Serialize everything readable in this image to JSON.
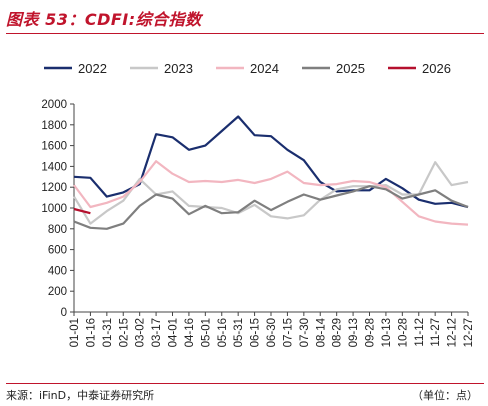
{
  "header": {
    "title": "图表 53：CDFI:综合指数"
  },
  "footer": {
    "source": "来源：iFinD，中泰证券研究所",
    "unit": "（单位：点）"
  },
  "chart_data": {
    "type": "line",
    "title": "图表 53：CDFI:综合指数",
    "xlabel": "",
    "ylabel": "",
    "ylim": [
      0,
      2000
    ],
    "yticks": [
      0,
      200,
      400,
      600,
      800,
      1000,
      1200,
      1400,
      1600,
      1800,
      2000
    ],
    "categories": [
      "01-01",
      "01-16",
      "01-31",
      "02-15",
      "03-02",
      "03-17",
      "04-01",
      "04-16",
      "05-01",
      "05-16",
      "05-31",
      "06-15",
      "06-30",
      "07-15",
      "07-30",
      "08-14",
      "08-29",
      "09-13",
      "09-28",
      "10-13",
      "10-28",
      "11-12",
      "11-27",
      "12-12",
      "12-27"
    ],
    "legend_position": "top",
    "grid": false,
    "series": [
      {
        "name": "2022",
        "color": "#1a2e6e",
        "values": [
          1300,
          1290,
          1110,
          1150,
          1230,
          1710,
          1680,
          1560,
          1600,
          1740,
          1880,
          1700,
          1690,
          1560,
          1460,
          1250,
          1160,
          1170,
          1170,
          1280,
          1190,
          1080,
          1040,
          1050,
          1010
        ]
      },
      {
        "name": "2023",
        "color": "#c8c8c8",
        "values": [
          1110,
          850,
          970,
          1070,
          1280,
          1130,
          1160,
          1020,
          1010,
          1000,
          950,
          1030,
          920,
          900,
          930,
          1080,
          1180,
          1210,
          1210,
          1220,
          1130,
          1130,
          1440,
          1220,
          1250
        ]
      },
      {
        "name": "2024",
        "color": "#f2b6c0",
        "values": [
          1220,
          1010,
          1050,
          1110,
          1250,
          1450,
          1330,
          1250,
          1260,
          1250,
          1270,
          1240,
          1280,
          1350,
          1240,
          1220,
          1230,
          1260,
          1250,
          1200,
          1060,
          920,
          870,
          850,
          840
        ]
      },
      {
        "name": "2025",
        "color": "#7f7f7f",
        "values": [
          870,
          810,
          800,
          850,
          1020,
          1130,
          1090,
          940,
          1020,
          950,
          960,
          1070,
          980,
          1060,
          1130,
          1080,
          1120,
          1160,
          1210,
          1180,
          1090,
          1130,
          1170,
          1070,
          1010
        ]
      },
      {
        "name": "2026",
        "color": "#b5102e",
        "values": [
          990,
          950,
          null,
          null,
          null,
          null,
          null,
          null,
          null,
          null,
          null,
          null,
          null,
          null,
          null,
          null,
          null,
          null,
          null,
          null,
          null,
          null,
          null,
          null,
          null
        ]
      }
    ]
  }
}
